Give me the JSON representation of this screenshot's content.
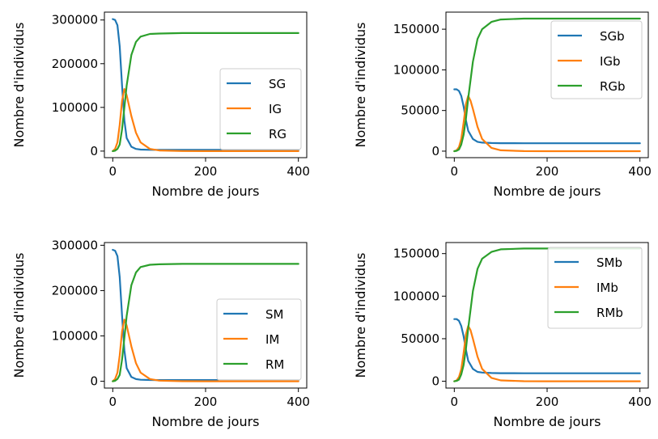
{
  "chart_data": [
    {
      "type": "line",
      "xlabel": "Nombre de jours",
      "ylabel": "Nombre d'individus",
      "xlim": [
        -18,
        418
      ],
      "ylim": [
        -15000,
        318000
      ],
      "xticks": [
        0,
        200,
        400
      ],
      "yticks": [
        0,
        100000,
        200000,
        300000
      ],
      "xtick_labels": [
        "0",
        "200",
        "400"
      ],
      "ytick_labels": [
        "0",
        "100000",
        "200000",
        "300000"
      ],
      "legend_position": "center-right",
      "series": [
        {
          "name": "SG",
          "color": "#1f77b4",
          "x": [
            0,
            5,
            10,
            15,
            20,
            25,
            30,
            40,
            50,
            60,
            80,
            100,
            150,
            200,
            300,
            400
          ],
          "y": [
            302000,
            300000,
            288000,
            240000,
            150000,
            70000,
            30000,
            10000,
            5000,
            3500,
            3000,
            2800,
            2700,
            2700,
            2700,
            2700
          ]
        },
        {
          "name": "IG",
          "color": "#ff7f0e",
          "x": [
            0,
            5,
            10,
            15,
            20,
            25,
            30,
            40,
            50,
            60,
            80,
            100,
            150,
            200,
            300,
            400
          ],
          "y": [
            0,
            5000,
            20000,
            60000,
            115000,
            142000,
            128000,
            80000,
            42000,
            20000,
            5000,
            1500,
            200,
            0,
            0,
            0
          ]
        },
        {
          "name": "RG",
          "color": "#2ca02c",
          "x": [
            0,
            5,
            10,
            15,
            20,
            25,
            30,
            40,
            50,
            60,
            80,
            100,
            150,
            200,
            300,
            400
          ],
          "y": [
            0,
            1000,
            5000,
            15000,
            50000,
            100000,
            150000,
            220000,
            250000,
            262000,
            268000,
            269000,
            270000,
            270000,
            270000,
            270000
          ]
        }
      ]
    },
    {
      "type": "line",
      "xlabel": "Nombre de jours",
      "ylabel": "Nombre d'individus",
      "xlim": [
        -18,
        418
      ],
      "ylim": [
        -8000,
        171000
      ],
      "xticks": [
        0,
        200,
        400
      ],
      "yticks": [
        0,
        50000,
        100000,
        150000
      ],
      "xtick_labels": [
        "0",
        "200",
        "400"
      ],
      "ytick_labels": [
        "0",
        "50000",
        "100000",
        "150000"
      ],
      "legend_position": "upper-right",
      "series": [
        {
          "name": "SGb",
          "color": "#1f77b4",
          "x": [
            0,
            5,
            10,
            15,
            20,
            25,
            30,
            40,
            50,
            60,
            80,
            100,
            150,
            200,
            300,
            400
          ],
          "y": [
            76000,
            76000,
            74000,
            68000,
            55000,
            38000,
            25000,
            15000,
            11500,
            10500,
            10000,
            9800,
            9700,
            9700,
            9700,
            9700
          ]
        },
        {
          "name": "IGb",
          "color": "#ff7f0e",
          "x": [
            0,
            5,
            10,
            15,
            20,
            25,
            30,
            35,
            40,
            50,
            60,
            80,
            100,
            150,
            200,
            300,
            400
          ],
          "y": [
            0,
            1000,
            5000,
            15000,
            35000,
            58000,
            68000,
            62000,
            52000,
            30000,
            15000,
            4000,
            1000,
            100,
            0,
            0,
            0
          ]
        },
        {
          "name": "RGb",
          "color": "#2ca02c",
          "x": [
            0,
            5,
            10,
            15,
            20,
            25,
            30,
            40,
            50,
            60,
            80,
            100,
            150,
            200,
            300,
            400
          ],
          "y": [
            0,
            500,
            2000,
            8000,
            20000,
            40000,
            65000,
            110000,
            138000,
            150000,
            159000,
            162000,
            163000,
            163000,
            163000,
            163000
          ]
        }
      ]
    },
    {
      "type": "line",
      "xlabel": "Nombre de jours",
      "ylabel": "Nombre d'individus",
      "xlim": [
        -18,
        418
      ],
      "ylim": [
        -15000,
        306000
      ],
      "xticks": [
        0,
        200,
        400
      ],
      "yticks": [
        0,
        100000,
        200000,
        300000
      ],
      "xtick_labels": [
        "0",
        "200",
        "400"
      ],
      "ytick_labels": [
        "0",
        "100000",
        "200000",
        "300000"
      ],
      "legend_position": "center-right",
      "series": [
        {
          "name": "SM",
          "color": "#1f77b4",
          "x": [
            0,
            5,
            10,
            15,
            20,
            25,
            30,
            40,
            50,
            60,
            80,
            100,
            150,
            200,
            300,
            400
          ],
          "y": [
            290000,
            288000,
            276000,
            230000,
            145000,
            68000,
            29000,
            9500,
            4800,
            3400,
            2900,
            2700,
            2600,
            2600,
            2600,
            2600
          ]
        },
        {
          "name": "IM",
          "color": "#ff7f0e",
          "x": [
            0,
            5,
            10,
            15,
            20,
            25,
            30,
            40,
            50,
            60,
            80,
            100,
            150,
            200,
            300,
            400
          ],
          "y": [
            0,
            5000,
            19000,
            57000,
            110000,
            136000,
            123000,
            77000,
            40000,
            19000,
            5000,
            1400,
            200,
            0,
            0,
            0
          ]
        },
        {
          "name": "RM",
          "color": "#2ca02c",
          "x": [
            0,
            5,
            10,
            15,
            20,
            25,
            30,
            40,
            50,
            60,
            80,
            100,
            150,
            200,
            300,
            400
          ],
          "y": [
            0,
            1000,
            5000,
            14000,
            48000,
            96000,
            144000,
            212000,
            240000,
            252000,
            257000,
            258000,
            259000,
            259000,
            259000,
            259000
          ]
        }
      ]
    },
    {
      "type": "line",
      "xlabel": "Nombre de jours",
      "ylabel": "Nombre d'individus",
      "xlim": [
        -18,
        418
      ],
      "ylim": [
        -8000,
        163000
      ],
      "xticks": [
        0,
        200,
        400
      ],
      "yticks": [
        0,
        50000,
        100000,
        150000
      ],
      "xtick_labels": [
        "0",
        "200",
        "400"
      ],
      "ytick_labels": [
        "0",
        "50000",
        "100000",
        "150000"
      ],
      "legend_position": "upper-right",
      "series": [
        {
          "name": "SMb",
          "color": "#1f77b4",
          "x": [
            0,
            5,
            10,
            15,
            20,
            25,
            30,
            40,
            50,
            60,
            80,
            100,
            150,
            200,
            300,
            400
          ],
          "y": [
            73000,
            73000,
            71000,
            65000,
            53000,
            37000,
            24000,
            14500,
            11000,
            10200,
            9700,
            9500,
            9400,
            9400,
            9400,
            9400
          ]
        },
        {
          "name": "IMb",
          "color": "#ff7f0e",
          "x": [
            0,
            5,
            10,
            15,
            20,
            25,
            30,
            35,
            40,
            50,
            60,
            80,
            100,
            150,
            200,
            300,
            400
          ],
          "y": [
            0,
            1000,
            5000,
            14000,
            33000,
            55000,
            65000,
            60000,
            50000,
            29000,
            14500,
            4000,
            1000,
            100,
            0,
            0,
            0
          ]
        },
        {
          "name": "RMb",
          "color": "#2ca02c",
          "x": [
            0,
            5,
            10,
            15,
            20,
            25,
            30,
            40,
            50,
            60,
            80,
            100,
            150,
            200,
            300,
            400
          ],
          "y": [
            0,
            500,
            2000,
            8000,
            19000,
            38000,
            62000,
            106000,
            132000,
            144000,
            152000,
            155000,
            156000,
            156000,
            156000,
            156000
          ]
        }
      ]
    }
  ]
}
